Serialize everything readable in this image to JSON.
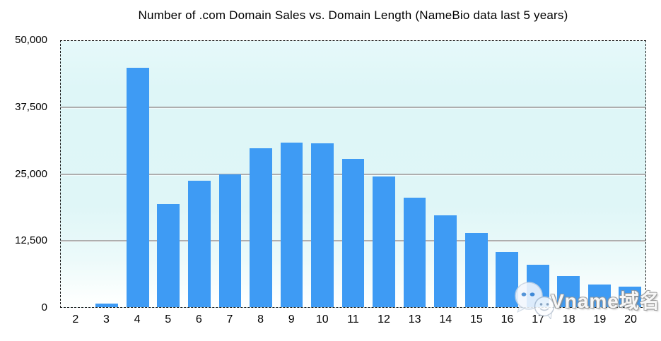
{
  "page": {
    "background_color": "#ffffff"
  },
  "chart_data": {
    "type": "bar",
    "title": "Number of .com Domain Sales vs. Domain Length (NameBio data last 5 years)",
    "xlabel": "",
    "ylabel": "",
    "categories": [
      "2",
      "3",
      "4",
      "5",
      "6",
      "7",
      "8",
      "9",
      "10",
      "11",
      "12",
      "13",
      "14",
      "15",
      "16",
      "17",
      "18",
      "19",
      "20"
    ],
    "values": [
      0,
      600,
      45000,
      19300,
      23800,
      24900,
      29800,
      30900,
      30800,
      27800,
      24600,
      20500,
      17300,
      13900,
      10400,
      7900,
      5800,
      4200,
      3900
    ],
    "ylim": [
      0,
      50000
    ],
    "y_ticks": [
      {
        "value": 0,
        "label": "0"
      },
      {
        "value": 12500,
        "label": "12,500"
      },
      {
        "value": 25000,
        "label": "25,000"
      },
      {
        "value": 37500,
        "label": "37,500"
      },
      {
        "value": 50000,
        "label": "50,000"
      }
    ],
    "grid_values": [
      12500,
      25000,
      37500
    ],
    "grid": "horizontal",
    "legend_position": "none",
    "colors": {
      "bar": "#3e9bf4",
      "grid": "#aeaeae",
      "plot_border": "#161616",
      "text": "#000000"
    }
  },
  "watermark": {
    "text": "Vname域名",
    "icon": "wechat-smiley-icon"
  }
}
